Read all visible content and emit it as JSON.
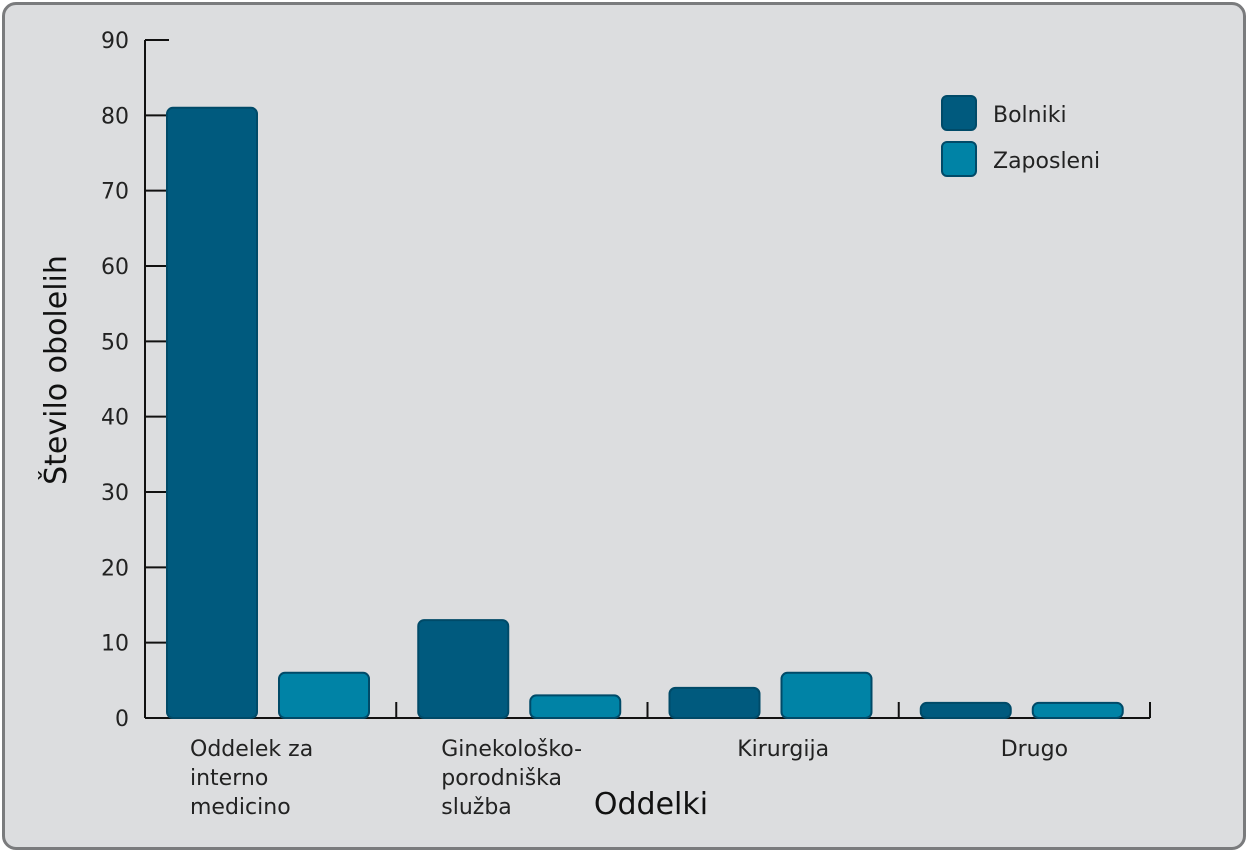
{
  "chart_data": {
    "type": "bar",
    "title": "",
    "xlabel": "Oddelki",
    "ylabel": "Število obolelih",
    "ylim": [
      0,
      90
    ],
    "yticks": [
      0,
      10,
      20,
      30,
      40,
      50,
      60,
      70,
      80,
      90
    ],
    "categories": [
      [
        "Oddelek za",
        "interno",
        "medicino"
      ],
      [
        "Ginekološko-",
        "porodniška",
        "služba"
      ],
      [
        "Kirurgija"
      ],
      [
        "Drugo"
      ]
    ],
    "series": [
      {
        "name": "Bolniki",
        "color": "#005a7e",
        "values": [
          81,
          13,
          4,
          2
        ]
      },
      {
        "name": "Zaposleni",
        "color": "#0083a6",
        "values": [
          6,
          3,
          6,
          2
        ]
      }
    ],
    "legend": "top-right",
    "grid": false
  }
}
